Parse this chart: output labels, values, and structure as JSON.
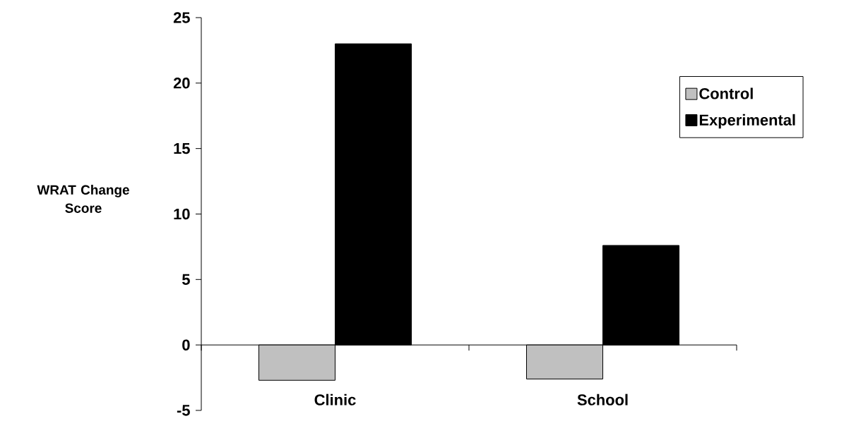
{
  "chart_data": {
    "type": "bar",
    "categories": [
      "Clinic",
      "School"
    ],
    "series": [
      {
        "name": "Control",
        "color": "#c0c0c0",
        "values": [
          -2.7,
          -2.6
        ]
      },
      {
        "name": "Experimental",
        "color": "#000000",
        "values": [
          23,
          7.6
        ]
      }
    ],
    "ylabel": "WRAT Change Score",
    "ylim": [
      -5,
      25
    ],
    "yticks": [
      -5,
      0,
      5,
      10,
      15,
      20,
      25
    ],
    "legend": "right"
  }
}
